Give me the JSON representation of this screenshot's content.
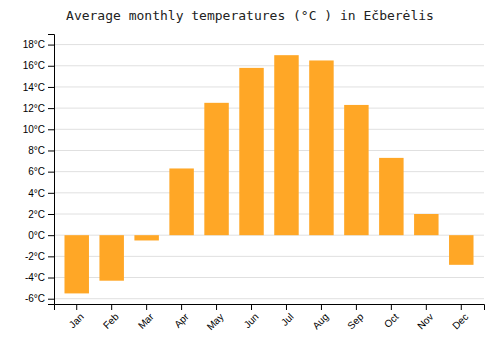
{
  "chart_data": {
    "type": "bar",
    "title": "Average monthly temperatures (°C ) in Ečberėlis",
    "categories": [
      "Jan",
      "Feb",
      "Mar",
      "Apr",
      "May",
      "Jun",
      "Jul",
      "Aug",
      "Sep",
      "Oct",
      "Nov",
      "Dec"
    ],
    "values": [
      -5.5,
      -4.3,
      -0.5,
      6.3,
      12.5,
      15.8,
      17.0,
      16.5,
      12.3,
      7.3,
      2.0,
      -2.8
    ],
    "color": "#FFA726",
    "ylim": [
      -6.5,
      19
    ],
    "yticks": [
      {
        "value": -6,
        "label": "-6°C"
      },
      {
        "value": -4,
        "label": "-4°C"
      },
      {
        "value": -2,
        "label": "-2°C"
      },
      {
        "value": 0,
        "label": "0°C"
      },
      {
        "value": 2,
        "label": "2°C"
      },
      {
        "value": 4,
        "label": "4°C"
      },
      {
        "value": 6,
        "label": "6°C"
      },
      {
        "value": 8,
        "label": "8°C"
      },
      {
        "value": 10,
        "label": "10°C"
      },
      {
        "value": 12,
        "label": "12°C"
      },
      {
        "value": 14,
        "label": "14°C"
      },
      {
        "value": 16,
        "label": "16°C"
      },
      {
        "value": 18,
        "label": "18°C"
      }
    ],
    "grid": true
  }
}
